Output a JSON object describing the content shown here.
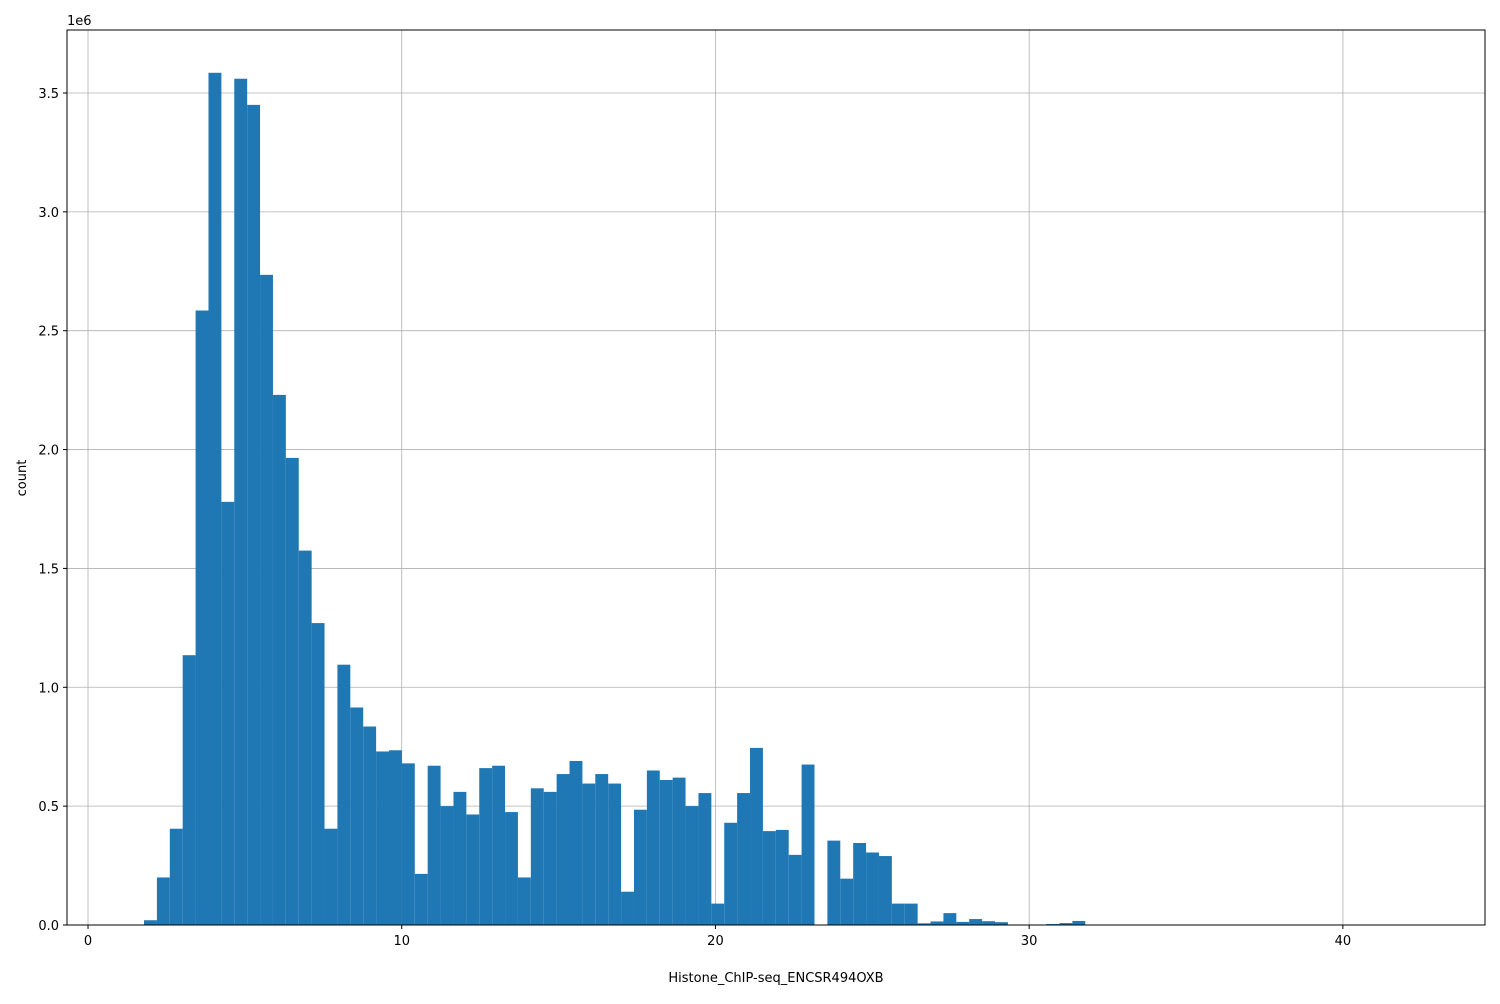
{
  "chart_data": {
    "type": "bar",
    "subtype": "histogram",
    "title": "",
    "xlabel": "Histone_ChIP-seq_ENCSR494OXB",
    "ylabel": "count",
    "y_offset_label": "1e6",
    "xlim": [
      -0.67,
      44.53
    ],
    "ylim": [
      0,
      3765000
    ],
    "xticks": [
      0,
      10,
      20,
      30,
      40
    ],
    "xtick_labels": [
      "0",
      "10",
      "20",
      "30",
      "40"
    ],
    "yticks": [
      0,
      500000,
      1000000,
      1500000,
      2000000,
      2500000,
      3000000,
      3500000
    ],
    "ytick_labels": [
      "0.0",
      "0.5",
      "1.0",
      "1.5",
      "2.0",
      "2.5",
      "3.0",
      "3.5"
    ],
    "grid": true,
    "bar_color": "#1f77b4",
    "bin_start": 1.785,
    "bin_width": 0.411,
    "counts": [
      20000,
      200000,
      405000,
      1135000,
      2585000,
      3585000,
      1780000,
      3560000,
      3450000,
      2735000,
      2230000,
      1965000,
      1575000,
      1270000,
      405000,
      1095000,
      915000,
      835000,
      730000,
      735000,
      680000,
      215000,
      670000,
      500000,
      560000,
      465000,
      660000,
      670000,
      475000,
      200000,
      575000,
      560000,
      635000,
      690000,
      595000,
      635000,
      595000,
      140000,
      485000,
      650000,
      610000,
      620000,
      500000,
      555000,
      90000,
      430000,
      555000,
      745000,
      395000,
      400000,
      295000,
      675000,
      0,
      355000,
      195000,
      345000,
      305000,
      290000,
      90000,
      90000,
      7000,
      15000,
      50000,
      13000,
      25000,
      16000,
      12000,
      0,
      0,
      0,
      4000,
      8000,
      17000
    ]
  }
}
